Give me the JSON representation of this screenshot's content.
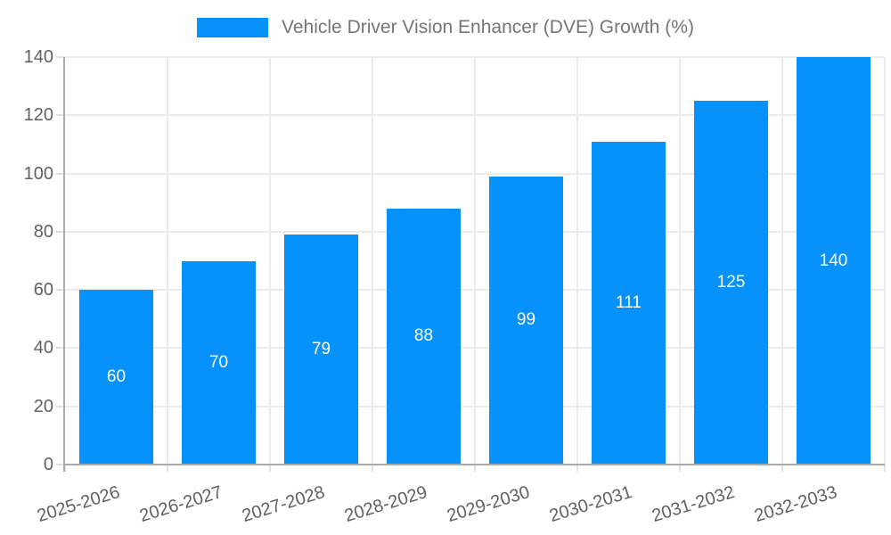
{
  "chart_data": {
    "type": "bar",
    "title": "Vehicle Driver Vision Enhancer (DVE) Growth (%)",
    "legend": {
      "label": "Vehicle Driver Vision Enhancer (DVE) Growth (%)",
      "position": "top"
    },
    "categories": [
      "2025-2026",
      "2026-2027",
      "2027-2028",
      "2028-2029",
      "2029-2030",
      "2030-2031",
      "2031-2032",
      "2032-2033"
    ],
    "values": [
      60,
      70,
      79,
      88,
      99,
      111,
      125,
      140
    ],
    "bar_value_labels": [
      "60",
      "70",
      "79",
      "88",
      "99",
      "111",
      "125",
      "140"
    ],
    "xlabel": "",
    "ylabel": "",
    "ylim": [
      0,
      140
    ],
    "y_ticks": [
      0,
      20,
      40,
      60,
      80,
      100,
      120,
      140
    ],
    "grid": true,
    "legend_position": "top",
    "colors": {
      "bar": "#0791fa",
      "grid": "#ebebeb",
      "tick": "#e2e2e2",
      "axis": "#ababab",
      "tick_label": "#616161",
      "legend_text": "#757575",
      "bar_label": "#ffffff",
      "background": "#ffffff"
    }
  }
}
